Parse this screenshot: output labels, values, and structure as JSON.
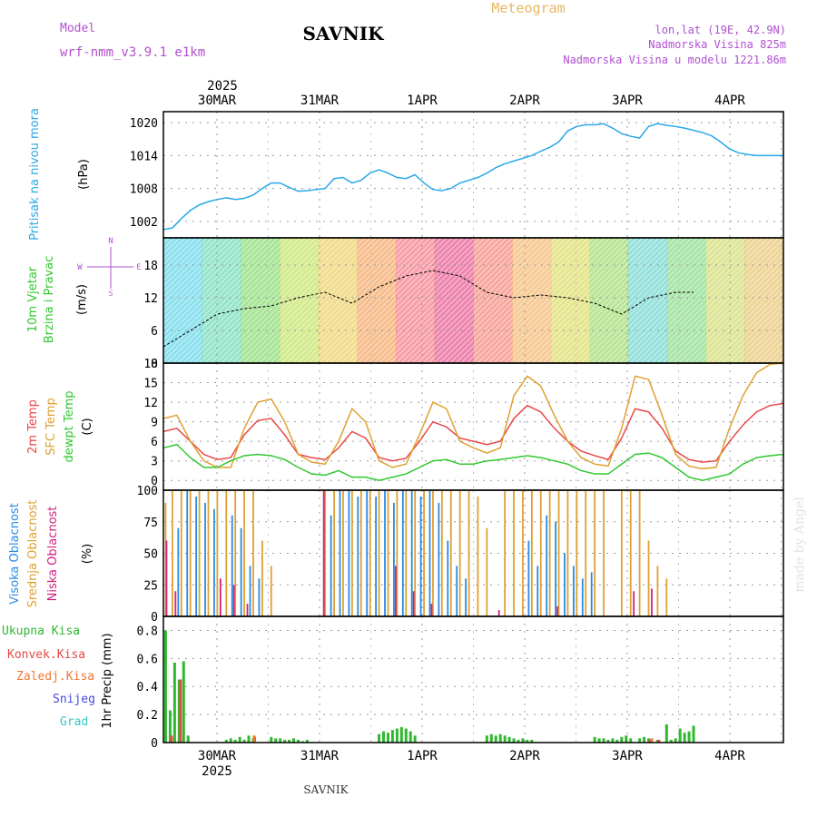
{
  "header": {
    "model_label": "Model",
    "model_name": "wrf-nmm_v3.9.1 e1km",
    "station": "SAVNIK",
    "product": "Meteogram",
    "lonlat": "lon,lat (19E, 42.9N)",
    "elevation": "Nadmorska Visina 825m",
    "model_elevation": "Nadmorska Visina u modelu 1221.86m"
  },
  "time_axis": {
    "year": "2025",
    "day_labels": [
      "30MAR",
      "31MAR",
      "1APR",
      "2APR",
      "3APR",
      "4APR"
    ]
  },
  "footer": {
    "station": "SAVNIK",
    "credit": "made by Angel"
  },
  "colors": {
    "pressure": "#2aa8e8",
    "temp2m": "#e84848",
    "sfc_temp": "#e0a030",
    "dewpoint": "#30c830",
    "high_cloud": "#2a8ae0",
    "mid_cloud": "#e0a030",
    "low_cloud": "#d02080",
    "total_precip": "#30b830",
    "convective": "#e84848",
    "freezing": "#f07830",
    "snow": "#4848e0",
    "hail": "#30c8c8",
    "title_violet": "#b050d0",
    "product_orange": "#e8b860"
  },
  "chart_data": [
    {
      "type": "line",
      "panel": "pressure",
      "ylabel_1": "Pritisak na nivou mora",
      "ylabel_2": "(hPa)",
      "ylim": [
        999,
        1022
      ],
      "yticks": [
        1002,
        1008,
        1014,
        1020
      ],
      "x_hours": [
        0,
        2,
        4,
        6,
        8,
        10,
        12,
        14,
        16,
        18,
        20,
        22,
        24,
        26,
        28,
        30,
        32,
        34,
        36,
        38,
        40,
        42,
        44,
        46,
        48,
        50,
        52,
        54,
        56,
        58,
        60,
        62,
        64,
        66,
        68,
        70,
        72,
        74,
        76,
        78,
        80,
        82,
        84,
        86,
        88,
        90,
        92,
        94,
        96,
        98,
        100,
        102,
        104,
        106,
        108,
        110,
        112,
        114,
        116,
        118,
        120,
        122,
        124,
        126,
        128,
        130,
        132,
        134,
        136,
        138
      ],
      "series": [
        {
          "color_key": "pressure",
          "values": [
            1000.5,
            1000.8,
            1002.5,
            1004,
            1005,
            1005.6,
            1006,
            1006.3,
            1006,
            1006.2,
            1006.8,
            1008,
            1009,
            1009,
            1008.2,
            1007.5,
            1007.6,
            1007.8,
            1008,
            1009.8,
            1010,
            1009,
            1009.5,
            1010.8,
            1011.4,
            1010.8,
            1010,
            1009.8,
            1010.5,
            1009,
            1007.8,
            1007.6,
            1008,
            1009,
            1009.5,
            1010,
            1010.8,
            1011.8,
            1012.5,
            1013,
            1013.5,
            1014,
            1014.8,
            1015.5,
            1016.5,
            1018.5,
            1019.3,
            1019.6,
            1019.6,
            1019.8,
            1019,
            1018,
            1017.5,
            1017.2,
            1019.3,
            1019.8,
            1019.5,
            1019.3,
            1019,
            1018.6,
            1018.2,
            1017.6,
            1016.5,
            1015.2,
            1014.5,
            1014.2,
            1014,
            1014,
            1014,
            1014
          ]
        }
      ]
    },
    {
      "type": "line",
      "panel": "wind",
      "ylabel_1": "10m Vjetar",
      "ylabel_2": "Brzina i Pravac",
      "ylabel_3": "(m/s)",
      "compass": {
        "n": "N",
        "w": "W",
        "e": "E",
        "s": "S"
      },
      "ylim": [
        0,
        23
      ],
      "yticks": [
        0,
        6,
        12,
        18
      ],
      "x_hours": [
        0,
        6,
        12,
        18,
        24,
        30,
        36,
        42,
        48,
        54,
        60,
        66,
        72,
        78,
        84,
        90,
        96,
        102,
        108,
        114,
        118
      ],
      "series": [
        {
          "color_key": "wind_speed",
          "values": [
            3,
            6,
            9,
            10,
            10.5,
            12,
            13,
            11,
            14,
            16,
            17,
            16,
            13,
            12,
            12.5,
            12,
            11,
            9,
            12,
            13,
            13
          ]
        }
      ]
    },
    {
      "type": "line",
      "panel": "temperature",
      "ylabel_1": "2m Temp",
      "ylabel_2": "SFC Temp",
      "ylabel_3": "dewpt Temp",
      "ylabel_4": "(C)",
      "ylim": [
        -1.5,
        18
      ],
      "yticks": [
        0,
        3,
        6,
        9,
        12,
        15,
        18
      ],
      "x_hours": [
        0,
        3,
        6,
        9,
        12,
        15,
        18,
        21,
        24,
        27,
        30,
        33,
        36,
        39,
        42,
        45,
        48,
        51,
        54,
        57,
        60,
        63,
        66,
        69,
        72,
        75,
        78,
        81,
        84,
        87,
        90,
        93,
        96,
        99,
        102,
        105,
        108,
        111,
        114,
        117,
        120,
        123,
        126,
        129,
        132,
        135,
        138
      ],
      "series": [
        {
          "name": "2m Temp",
          "color_key": "temp2m",
          "values": [
            7.5,
            8,
            6,
            4,
            3.2,
            3.5,
            7,
            9.2,
            9.5,
            7,
            4,
            3.5,
            3.2,
            5,
            7.5,
            6.5,
            3.5,
            3,
            3.4,
            6,
            9,
            8.2,
            6.5,
            6,
            5.5,
            6,
            9.5,
            11.5,
            10.5,
            8,
            6,
            4.5,
            3.8,
            3.2,
            6.5,
            11,
            10.5,
            8,
            4.5,
            3.2,
            2.8,
            3,
            6,
            8.5,
            10.5,
            11.5,
            11.8
          ]
        },
        {
          "name": "SFC Temp",
          "color_key": "sfc_temp",
          "values": [
            9.5,
            10,
            6,
            3,
            2,
            2,
            8,
            12,
            12.5,
            9,
            4,
            2.8,
            2.5,
            6,
            11,
            9,
            3,
            2,
            2.5,
            7,
            12,
            11,
            6,
            5,
            4.2,
            5,
            13,
            16,
            14.5,
            10,
            6,
            3.5,
            2.5,
            2.2,
            8,
            16,
            15.5,
            10,
            4,
            2.2,
            1.8,
            2,
            8,
            13,
            16.5,
            17.8,
            18
          ]
        },
        {
          "name": "dewpt Temp",
          "color_key": "dewpoint",
          "values": [
            5,
            5.5,
            3.5,
            2,
            2,
            3,
            3.8,
            4,
            3.8,
            3.2,
            2,
            1,
            0.8,
            1.5,
            0.5,
            0.5,
            0,
            0.5,
            1,
            2,
            3,
            3.2,
            2.5,
            2.5,
            3,
            3.2,
            3.5,
            3.8,
            3.5,
            3,
            2.5,
            1.5,
            1,
            1,
            2.5,
            4,
            4.2,
            3.5,
            2,
            0.5,
            0,
            0.5,
            1,
            2.5,
            3.5,
            3.8,
            4
          ]
        }
      ]
    },
    {
      "type": "bar",
      "panel": "cloud",
      "ylabel_1": "Visoka Oblacnost",
      "ylabel_2": "Srednja Oblacnost",
      "ylabel_3": "Niska Oblacnost",
      "ylabel_4": "(%)",
      "ylim": [
        0,
        100
      ],
      "yticks": [
        0,
        25,
        50,
        75,
        100
      ],
      "series": [
        {
          "name": "Srednja Oblacnost",
          "color_key": "mid_cloud",
          "x_hours": [
            0.5,
            2,
            4,
            6,
            8,
            10,
            12,
            14,
            16,
            18,
            20,
            22,
            24,
            36,
            38,
            40,
            42,
            44,
            46,
            48,
            50,
            52,
            54,
            56,
            58,
            60,
            62,
            64,
            66,
            68,
            70,
            72,
            76,
            78,
            80,
            82,
            84,
            86,
            88,
            90,
            92,
            94,
            96,
            98,
            102,
            104,
            106,
            108,
            110,
            112
          ],
          "values": [
            90,
            100,
            100,
            100,
            100,
            100,
            100,
            100,
            100,
            100,
            100,
            60,
            40,
            100,
            100,
            100,
            100,
            100,
            100,
            100,
            100,
            100,
            100,
            100,
            100,
            100,
            100,
            100,
            100,
            100,
            95,
            70,
            100,
            100,
            100,
            100,
            100,
            100,
            100,
            100,
            100,
            100,
            100,
            100,
            100,
            100,
            100,
            60,
            40,
            30
          ]
        },
        {
          "name": "Visoka Oblacnost",
          "color_key": "high_cloud",
          "x_hours": [
            3,
            5,
            7,
            9,
            11,
            15,
            17,
            19,
            21,
            37,
            39,
            41,
            43,
            45,
            47,
            49,
            51,
            53,
            55,
            57,
            59,
            61,
            63,
            65,
            67,
            81,
            83,
            85,
            87,
            89,
            91,
            93,
            95
          ],
          "values": [
            70,
            100,
            95,
            90,
            85,
            80,
            70,
            40,
            30,
            80,
            100,
            100,
            95,
            100,
            95,
            100,
            90,
            100,
            100,
            95,
            100,
            90,
            60,
            40,
            30,
            60,
            40,
            80,
            75,
            50,
            40,
            30,
            35
          ]
        },
        {
          "name": "Niska Oblacnost",
          "color_key": "low_cloud",
          "x_hours": [
            1,
            3,
            13,
            16,
            19,
            36,
            52,
            56,
            60,
            75,
            88,
            105,
            109
          ],
          "values": [
            60,
            20,
            30,
            25,
            10,
            100,
            40,
            20,
            10,
            5,
            8,
            20,
            22
          ]
        }
      ]
    },
    {
      "type": "bar",
      "panel": "precip",
      "ylabel_1": "1hr Precip (mm)",
      "ylim": [
        0,
        0.9
      ],
      "yticks": [
        0,
        0.2,
        0.4,
        0.6,
        0.8
      ],
      "legend": [
        "Ukupna Kisa",
        "Konvek.Kisa",
        "Zaledj.Kisa",
        "Snijeg",
        "Grad"
      ],
      "series": [
        {
          "name": "Ukupna Kisa",
          "color_key": "total_precip",
          "x_hours": [
            0.5,
            1.5,
            2.5,
            3.5,
            4.5,
            5.5,
            14,
            15,
            16,
            17,
            18,
            19,
            20,
            24,
            25,
            26,
            27,
            28,
            29,
            30,
            31,
            32,
            48,
            49,
            50,
            51,
            52,
            53,
            54,
            55,
            56,
            72,
            73,
            74,
            75,
            76,
            77,
            78,
            79,
            80,
            81,
            82,
            96,
            97,
            98,
            99,
            100,
            101,
            102,
            103,
            104,
            106,
            107,
            108,
            110,
            112,
            113,
            114,
            115,
            116,
            117,
            118
          ],
          "values": [
            0.8,
            0.23,
            0.57,
            0.45,
            0.58,
            0.05,
            0.02,
            0.03,
            0.02,
            0.04,
            0.02,
            0.05,
            0.03,
            0.04,
            0.03,
            0.03,
            0.02,
            0.02,
            0.03,
            0.02,
            0.01,
            0.02,
            0.06,
            0.08,
            0.07,
            0.09,
            0.1,
            0.11,
            0.1,
            0.08,
            0.05,
            0.05,
            0.06,
            0.05,
            0.06,
            0.05,
            0.04,
            0.03,
            0.02,
            0.03,
            0.02,
            0.02,
            0.04,
            0.03,
            0.03,
            0.02,
            0.03,
            0.02,
            0.04,
            0.05,
            0.03,
            0.03,
            0.04,
            0.03,
            0.02,
            0.13,
            0.02,
            0.03,
            0.1,
            0.07,
            0.08,
            0.12
          ]
        },
        {
          "name": "Konvek.Kisa",
          "color_key": "convective",
          "x_hours": [
            1.5,
            3.5,
            20,
            108,
            110
          ],
          "values": [
            0.05,
            0.45,
            0.04,
            0.02,
            0.02
          ]
        },
        {
          "name": "Zaledj.Kisa",
          "color_key": "freezing",
          "x_hours": [
            20.5,
            109
          ],
          "values": [
            0.05,
            0.03
          ]
        }
      ]
    }
  ]
}
